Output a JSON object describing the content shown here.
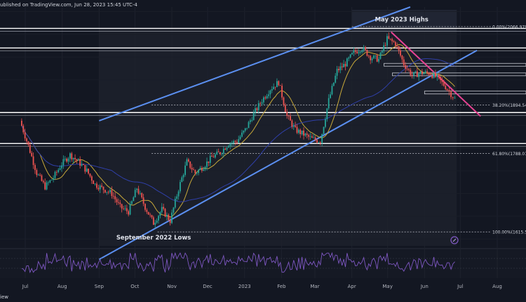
{
  "header": {
    "source_text": "ublished on TradingView.com, Jun 28, 2023 15:45 UTC-4"
  },
  "footer": {
    "text": "iew"
  },
  "icons": {
    "watermark": "tradingview-logo-icon"
  },
  "colors": {
    "background": "#131722",
    "bull_candle": "#26a69a",
    "bear_candle": "#ef5350",
    "channel": "#5b8ff0",
    "downtrend": "#e84393",
    "ma_fast": "#c8a93a",
    "ma_slow": "#2f3fa8",
    "rsi": "#7e57c2",
    "support_lines": "#ffffff"
  },
  "chart_data": {
    "type": "candlestick",
    "title": "",
    "xlabel": "",
    "ylabel": "",
    "x_ticks": [
      "Jul",
      "Aug",
      "Sep",
      "Oct",
      "Nov",
      "Dec",
      "2023",
      "Feb",
      "Mar",
      "Apr",
      "May",
      "Jun",
      "Jul",
      "Aug"
    ],
    "ylim": [
      1585,
      2110
    ],
    "grid": true,
    "annotations": [
      {
        "text": "May 2023 Highs",
        "date": "2023-05-04",
        "value": 2075
      },
      {
        "text": "September 2022 Lows",
        "date": "2022-10-12",
        "value": 1605
      }
    ],
    "fib_levels": [
      {
        "label": "0.00%(2066.979)",
        "value": 2066.979
      },
      {
        "label": "38.20%(1894.542",
        "value": 1894.542
      },
      {
        "label": "61.80%(1788.010",
        "value": 1788.01
      },
      {
        "label": "100.00%(1615.57",
        "value": 1615.57
      }
    ],
    "horizontal_levels": [
      2063,
      2020,
      1878,
      1810
    ],
    "channel": {
      "upper": [
        [
          "2022-09-01",
          1860
        ],
        [
          "2023-05-20",
          2110
        ]
      ],
      "lower": [
        [
          "2022-09-01",
          1555
        ],
        [
          "2023-06-28",
          1990
        ]
      ]
    },
    "downtrend_line": [
      [
        "2023-05-04",
        2055
      ],
      [
        "2023-07-18",
        1870
      ]
    ],
    "series": [
      {
        "name": "",
        "ohlc_close_points": [
          [
            "2022-06-28",
            1860
          ],
          [
            "2022-07-05",
            1805
          ],
          [
            "2022-07-12",
            1745
          ],
          [
            "2022-07-19",
            1715
          ],
          [
            "2022-07-26",
            1735
          ],
          [
            "2022-08-02",
            1765
          ],
          [
            "2022-08-09",
            1785
          ],
          [
            "2022-08-16",
            1770
          ],
          [
            "2022-08-23",
            1750
          ],
          [
            "2022-08-30",
            1720
          ],
          [
            "2022-09-06",
            1710
          ],
          [
            "2022-09-13",
            1700
          ],
          [
            "2022-09-20",
            1670
          ],
          [
            "2022-09-27",
            1660
          ],
          [
            "2022-10-04",
            1712
          ],
          [
            "2022-10-11",
            1670
          ],
          [
            "2022-10-18",
            1635
          ],
          [
            "2022-10-25",
            1665
          ],
          [
            "2022-11-01",
            1640
          ],
          [
            "2022-11-08",
            1710
          ],
          [
            "2022-11-15",
            1770
          ],
          [
            "2022-11-22",
            1745
          ],
          [
            "2022-11-29",
            1760
          ],
          [
            "2022-12-06",
            1780
          ],
          [
            "2022-12-13",
            1790
          ],
          [
            "2022-12-20",
            1810
          ],
          [
            "2022-12-27",
            1815
          ],
          [
            "2023-01-03",
            1840
          ],
          [
            "2023-01-10",
            1875
          ],
          [
            "2023-01-17",
            1905
          ],
          [
            "2023-01-24",
            1930
          ],
          [
            "2023-01-31",
            1945
          ],
          [
            "2023-02-07",
            1870
          ],
          [
            "2023-02-14",
            1840
          ],
          [
            "2023-02-21",
            1830
          ],
          [
            "2023-02-28",
            1820
          ],
          [
            "2023-03-07",
            1815
          ],
          [
            "2023-03-14",
            1905
          ],
          [
            "2023-03-21",
            1970
          ],
          [
            "2023-03-28",
            1985
          ],
          [
            "2023-04-04",
            2010
          ],
          [
            "2023-04-11",
            2020
          ],
          [
            "2023-04-18",
            2000
          ],
          [
            "2023-04-25",
            1995
          ],
          [
            "2023-05-02",
            2040
          ],
          [
            "2023-05-09",
            2030
          ],
          [
            "2023-05-16",
            1985
          ],
          [
            "2023-05-23",
            1960
          ],
          [
            "2023-05-30",
            1965
          ],
          [
            "2023-06-06",
            1965
          ],
          [
            "2023-06-13",
            1955
          ],
          [
            "2023-06-20",
            1935
          ],
          [
            "2023-06-28",
            1908
          ]
        ]
      },
      {
        "name": "",
        "kind": "moving_average_fast"
      },
      {
        "name": "",
        "kind": "moving_average_slow"
      },
      {
        "name": "",
        "kind": "rsi"
      }
    ]
  }
}
